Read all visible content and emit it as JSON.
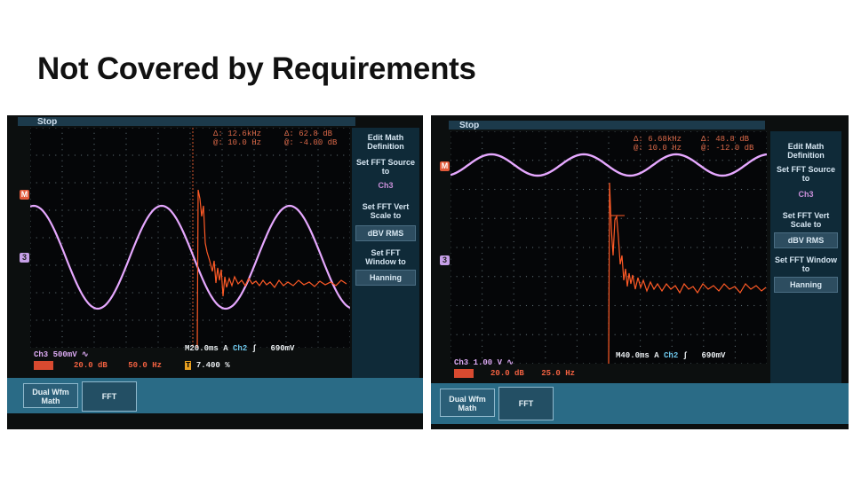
{
  "slide": {
    "title": "Not Covered by Requirements"
  },
  "left": {
    "status": "Stop",
    "cursor_readout": {
      "dA_label": "Δ:",
      "a1": "12.6kHz",
      "dB_label": "Δ:",
      "b1": "62.8 dB",
      "at_label": "@:",
      "a2": "10.0 Hz",
      "at2_label": "@:",
      "b2": "-4.00 dB"
    },
    "side_menu": [
      {
        "label": "Edit Math Definition"
      },
      {
        "label": "Set FFT Source to",
        "value": "Ch3"
      },
      {
        "label": "Set FFT Vert Scale to",
        "box": "dBV RMS"
      },
      {
        "label": "Set FFT Window to",
        "box": "Hanning"
      }
    ],
    "bottom_status": {
      "ch3": "Ch3",
      "ch3_scale": "500mV",
      "ch3_coupling": "∿",
      "math_label": "MATH",
      "math_scale": "20.0 dB",
      "math_freq": "50.0 Hz",
      "timebase": "M20.0ms",
      "trig_mode": "A",
      "trig_src": "Ch2",
      "trig_slope": "∫",
      "trig_level": "690mV",
      "trig_pos": "T",
      "trig_pct": "7.400 %"
    },
    "buttons": [
      {
        "label": "Dual Wfm Math"
      },
      {
        "label": "FFT"
      }
    ],
    "markers": {
      "math": "M",
      "ch3": "3"
    }
  },
  "right": {
    "status": "Stop",
    "cursor_readout": {
      "dA_label": "Δ:",
      "a1": "6.68kHz",
      "dB_label": "Δ:",
      "b1": "48.8 dB",
      "at_label": "@:",
      "a2": "10.0 Hz",
      "at2_label": "@:",
      "b2": "-12.0 dB"
    },
    "side_menu": [
      {
        "label": "Edit Math Definition"
      },
      {
        "label": "Set FFT Source to",
        "value": "Ch3"
      },
      {
        "label": "Set FFT Vert Scale to",
        "box": "dBV RMS"
      },
      {
        "label": "Set FFT Window to",
        "box": "Hanning"
      }
    ],
    "bottom_status": {
      "ch3": "Ch3",
      "ch3_scale": "1.00 V",
      "ch3_coupling": "∿",
      "math_label": "MATH",
      "math_scale": "20.0 dB",
      "math_freq": "25.0 Hz",
      "timebase": "M40.0ms",
      "trig_mode": "A",
      "trig_src": "Ch2",
      "trig_slope": "∫",
      "trig_level": "690mV"
    },
    "buttons": [
      {
        "label": "Dual Wfm Math"
      },
      {
        "label": "FFT"
      }
    ],
    "markers": {
      "math": "M",
      "ch3": "3"
    }
  },
  "colors": {
    "ch3_trace": "#e6a8ff",
    "fft_trace": "#ff5a26",
    "grid_dot": "#5b6a70",
    "panel": "#0f2a38"
  }
}
